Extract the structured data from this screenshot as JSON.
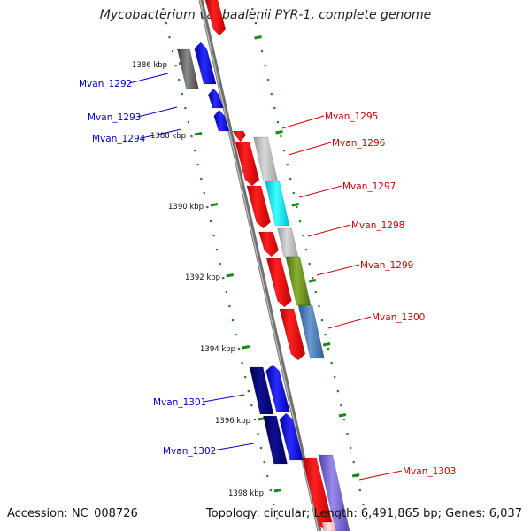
{
  "title": "Mycobacterium vanbaalenii PYR-1, complete genome",
  "footer": {
    "accession": "Accession: NC_008726",
    "summary": "Topology: circular; Length: 6,491,865 bp; Genes: 6,037"
  },
  "colors": {
    "backbone": "#8a8a8a",
    "tick": "#1a8a1a",
    "forward_gene": "#0000ff",
    "reverse_gene": "#ff0000",
    "navy_gene": "#000080",
    "gray_gene": "#666666",
    "forward_label": "#0000cc",
    "reverse_label": "#cc0000"
  },
  "ticks": [
    {
      "label": "1386 kbp"
    },
    {
      "label": "1388 kbp"
    },
    {
      "label": "1390 kbp"
    },
    {
      "label": "1392 kbp"
    },
    {
      "label": "1394 kbp"
    },
    {
      "label": "1396 kbp"
    },
    {
      "label": "1398 kbp"
    }
  ],
  "left_labels": [
    {
      "label": "Mvan_1292"
    },
    {
      "label": "Mvan_1293"
    },
    {
      "label": "Mvan_1294"
    },
    {
      "label": "Mvan_1301"
    },
    {
      "label": "Mvan_1302"
    }
  ],
  "right_labels": [
    {
      "label": "Mvan_1295"
    },
    {
      "label": "Mvan_1296"
    },
    {
      "label": "Mvan_1297"
    },
    {
      "label": "Mvan_1298"
    },
    {
      "label": "Mvan_1299"
    },
    {
      "label": "Mvan_1300"
    },
    {
      "label": "Mvan_1303"
    }
  ]
}
